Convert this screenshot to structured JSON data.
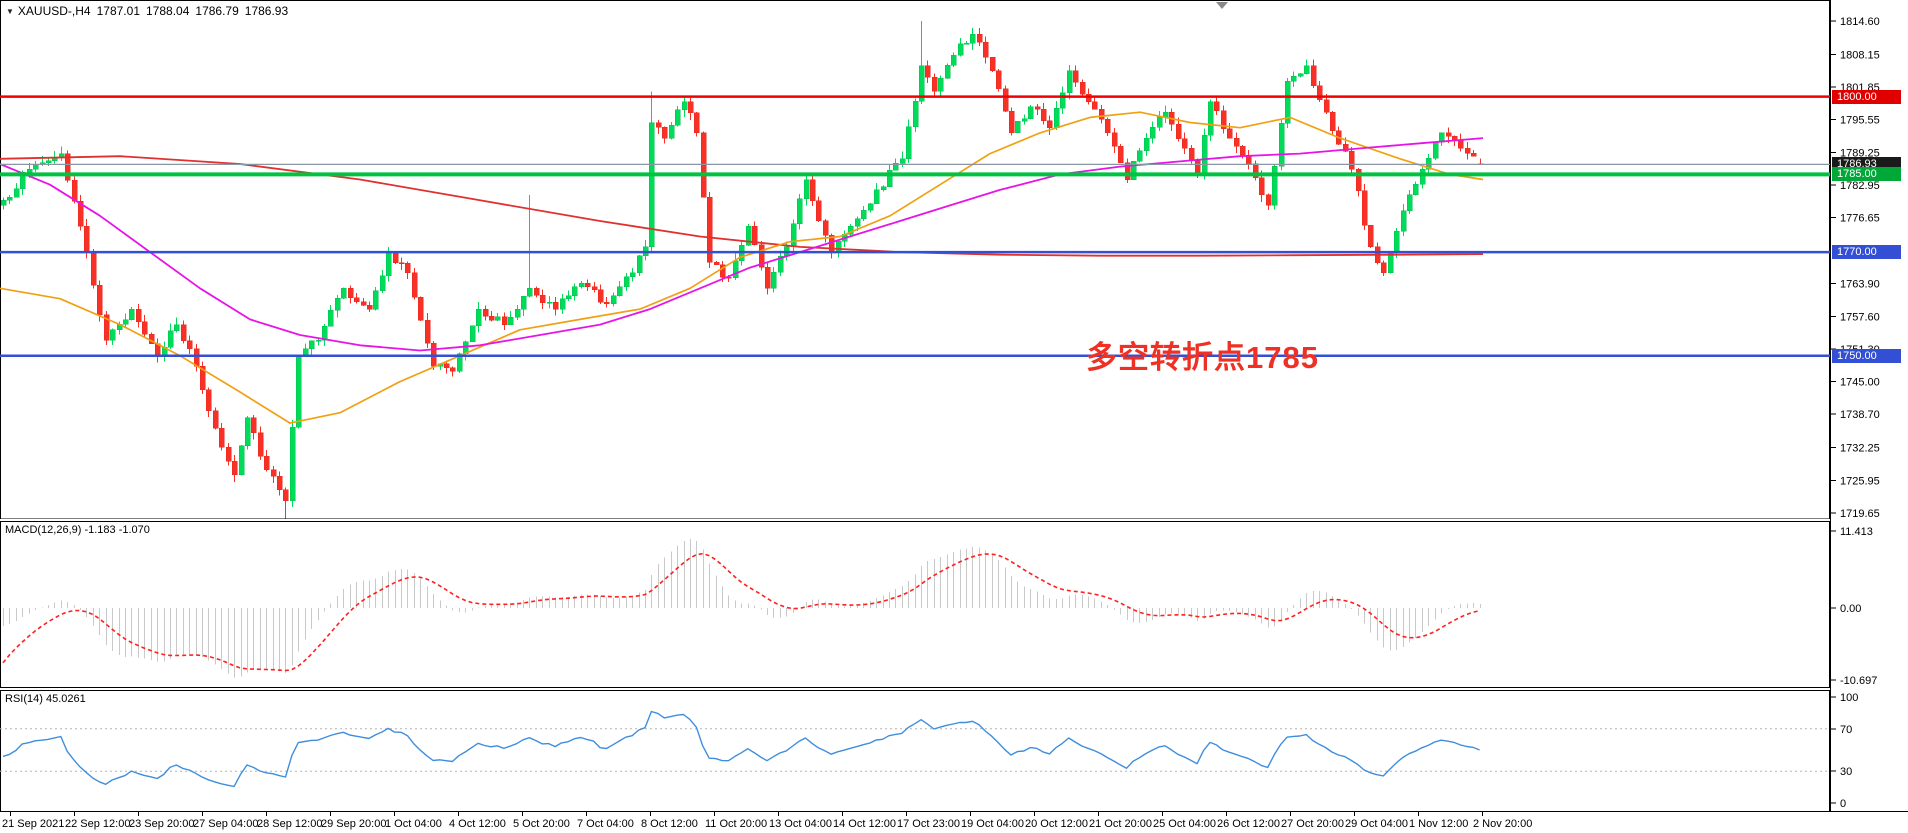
{
  "header": {
    "symbol_label": "XAUUSD-,H4",
    "open": "1787.01",
    "high": "1788.04",
    "low": "1786.79",
    "close": "1786.93"
  },
  "annotation": {
    "text": "多空转折点1785",
    "color": "#EE3124"
  },
  "panels": {
    "macd": {
      "label": "MACD(12,26,9) -1.183 -1.070",
      "axis": [
        "11.413",
        "0.00",
        "-10.697"
      ]
    },
    "rsi": {
      "label": "RSI(14) 45.0261",
      "axis": [
        "100",
        "70",
        "30",
        "0"
      ],
      "levels": [
        70,
        30
      ]
    }
  },
  "price_axis": {
    "labels": [
      "1814.60",
      "1808.15",
      "1801.85",
      "1795.55",
      "1789.25",
      "1782.95",
      "1776.65",
      "1763.90",
      "1757.60",
      "1751.30",
      "1745.00",
      "1738.70",
      "1732.25",
      "1725.95",
      "1719.65"
    ],
    "badges": [
      {
        "name": "price-badge-1800",
        "text": "1800.00",
        "price": 1800.0,
        "color": "#E00000"
      },
      {
        "name": "price-badge-current",
        "text": "1786.93",
        "price": 1786.93,
        "color": "#1A1A1A"
      },
      {
        "name": "price-badge-1785",
        "text": "1785.00",
        "price": 1785.0,
        "color": "#00A838"
      },
      {
        "name": "price-badge-1770",
        "text": "1770.00",
        "price": 1770.0,
        "color": "#3350D4"
      },
      {
        "name": "price-badge-1750",
        "text": "1750.00",
        "price": 1750.0,
        "color": "#3350D4"
      }
    ]
  },
  "time_axis": {
    "labels": [
      "21 Sep 2021",
      "22 Sep 12:00",
      "23 Sep 20:00",
      "27 Sep 04:00",
      "28 Sep 12:00",
      "29 Sep 20:00",
      "1 Oct 04:00",
      "4 Oct 12:00",
      "5 Oct 20:00",
      "7 Oct 04:00",
      "8 Oct 12:00",
      "11 Oct 20:00",
      "13 Oct 04:00",
      "14 Oct 12:00",
      "17 Oct 23:00",
      "19 Oct 04:00",
      "20 Oct 12:00",
      "21 Oct 20:00",
      "25 Oct 04:00",
      "26 Oct 12:00",
      "27 Oct 20:00",
      "29 Oct 04:00",
      "1 Nov 12:00",
      "2 Nov 20:00"
    ]
  },
  "chart_data": {
    "type": "candlestick",
    "instrument": "XAUUSD",
    "timeframe": "H4",
    "title": "XAUUSD-,H4",
    "candle_count": 231,
    "visible_range": {
      "price_min": 1718.9,
      "price_max": 1818.6,
      "time_start": "21 Sep 2021",
      "time_end": "2 Nov 20:00"
    },
    "last_candle": {
      "open": 1787.01,
      "high": 1788.04,
      "low": 1786.79,
      "close": 1786.93
    },
    "swing_points": [
      [
        0,
        1780
      ],
      [
        4,
        1786
      ],
      [
        9,
        1789
      ],
      [
        12,
        1775
      ],
      [
        16,
        1753
      ],
      [
        20,
        1759
      ],
      [
        24,
        1750
      ],
      [
        27,
        1756
      ],
      [
        30,
        1748
      ],
      [
        33,
        1736
      ],
      [
        36,
        1727
      ],
      [
        38,
        1738
      ],
      [
        41,
        1728
      ],
      [
        44,
        1722
      ],
      [
        46,
        1750
      ],
      [
        49,
        1753
      ],
      [
        53,
        1763
      ],
      [
        57,
        1759
      ],
      [
        60,
        1770
      ],
      [
        63,
        1766
      ],
      [
        67,
        1748
      ],
      [
        70,
        1747
      ],
      [
        74,
        1759
      ],
      [
        78,
        1756
      ],
      [
        82,
        1763
      ],
      [
        86,
        1759
      ],
      [
        90,
        1764
      ],
      [
        94,
        1760
      ],
      [
        98,
        1766
      ],
      [
        100,
        1771
      ],
      [
        101,
        1795
      ],
      [
        103,
        1792
      ],
      [
        106,
        1799
      ],
      [
        108,
        1793
      ],
      [
        110,
        1768
      ],
      [
        113,
        1765
      ],
      [
        116,
        1775
      ],
      [
        119,
        1763
      ],
      [
        122,
        1771
      ],
      [
        125,
        1784
      ],
      [
        127,
        1776
      ],
      [
        129,
        1770
      ],
      [
        132,
        1775
      ],
      [
        136,
        1782
      ],
      [
        140,
        1788
      ],
      [
        143,
        1806
      ],
      [
        145,
        1801
      ],
      [
        148,
        1808
      ],
      [
        151,
        1812
      ],
      [
        154,
        1805
      ],
      [
        157,
        1793
      ],
      [
        160,
        1798
      ],
      [
        163,
        1794
      ],
      [
        166,
        1805
      ],
      [
        169,
        1799
      ],
      [
        172,
        1793
      ],
      [
        175,
        1784
      ],
      [
        178,
        1792
      ],
      [
        181,
        1797
      ],
      [
        184,
        1790
      ],
      [
        186,
        1785
      ],
      [
        188,
        1799
      ],
      [
        191,
        1792
      ],
      [
        194,
        1787
      ],
      [
        197,
        1779
      ],
      [
        200,
        1803
      ],
      [
        203,
        1806
      ],
      [
        206,
        1797
      ],
      [
        210,
        1786
      ],
      [
        213,
        1771
      ],
      [
        215,
        1766
      ],
      [
        218,
        1778
      ],
      [
        221,
        1786
      ],
      [
        224,
        1793
      ],
      [
        227,
        1790
      ],
      [
        230,
        1786.93
      ]
    ],
    "spikes": [
      {
        "index": 44,
        "side": "low",
        "price": 1718.6
      },
      {
        "index": 82,
        "side": "high",
        "price": 1781.0
      },
      {
        "index": 101,
        "side": "high",
        "price": 1801.0
      },
      {
        "index": 143,
        "side": "high",
        "price": 1814.6
      },
      {
        "index": 151,
        "side": "high",
        "price": 1813.2
      }
    ],
    "horizontal_lines": [
      {
        "name": "resistance-1800",
        "price": 1800.0,
        "color": "#F00000",
        "width": 2.5
      },
      {
        "name": "pivot-1785",
        "price": 1785.0,
        "color": "#00C342",
        "width": 4
      },
      {
        "name": "support-1770",
        "price": 1770.0,
        "color": "#3350D4",
        "width": 2.5
      },
      {
        "name": "support-1750",
        "price": 1750.0,
        "color": "#3350D4",
        "width": 2.5
      },
      {
        "name": "current-price",
        "price": 1786.93,
        "color": "#8A96A3",
        "width": 1.2
      }
    ],
    "moving_averages": {
      "orange_ma": [
        [
          0,
          1763
        ],
        [
          60,
          1761
        ],
        [
          120,
          1756
        ],
        [
          180,
          1750
        ],
        [
          240,
          1743
        ],
        [
          290,
          1737
        ],
        [
          340,
          1739
        ],
        [
          400,
          1745
        ],
        [
          460,
          1750
        ],
        [
          520,
          1755
        ],
        [
          580,
          1757
        ],
        [
          640,
          1759
        ],
        [
          690,
          1763
        ],
        [
          740,
          1769
        ],
        [
          790,
          1772
        ],
        [
          840,
          1773
        ],
        [
          890,
          1777
        ],
        [
          940,
          1783
        ],
        [
          990,
          1789
        ],
        [
          1040,
          1793
        ],
        [
          1090,
          1796
        ],
        [
          1140,
          1797
        ],
        [
          1190,
          1795
        ],
        [
          1240,
          1794
        ],
        [
          1290,
          1796
        ],
        [
          1340,
          1792
        ],
        [
          1400,
          1788
        ],
        [
          1450,
          1785
        ],
        [
          1483,
          1784
        ]
      ],
      "magenta_ma": [
        [
          0,
          1787
        ],
        [
          50,
          1783
        ],
        [
          100,
          1777
        ],
        [
          150,
          1770
        ],
        [
          200,
          1763
        ],
        [
          250,
          1757
        ],
        [
          300,
          1754
        ],
        [
          360,
          1752
        ],
        [
          420,
          1751
        ],
        [
          480,
          1752
        ],
        [
          540,
          1754
        ],
        [
          600,
          1756
        ],
        [
          650,
          1759
        ],
        [
          700,
          1763
        ],
        [
          750,
          1767
        ],
        [
          800,
          1770
        ],
        [
          850,
          1773
        ],
        [
          900,
          1776
        ],
        [
          950,
          1779
        ],
        [
          1000,
          1782
        ],
        [
          1060,
          1785
        ],
        [
          1120,
          1786.5
        ],
        [
          1180,
          1787.5
        ],
        [
          1240,
          1788.5
        ],
        [
          1300,
          1789
        ],
        [
          1360,
          1790
        ],
        [
          1420,
          1791
        ],
        [
          1483,
          1792
        ]
      ],
      "red_ma": [
        [
          0,
          1788
        ],
        [
          120,
          1788.5
        ],
        [
          240,
          1787
        ],
        [
          360,
          1784
        ],
        [
          480,
          1780
        ],
        [
          600,
          1776
        ],
        [
          700,
          1773
        ],
        [
          800,
          1771
        ],
        [
          900,
          1770
        ],
        [
          1000,
          1769.5
        ],
        [
          1100,
          1769.3
        ],
        [
          1200,
          1769.3
        ],
        [
          1300,
          1769.4
        ],
        [
          1400,
          1769.5
        ],
        [
          1483,
          1769.6
        ]
      ]
    },
    "indicators": {
      "macd": {
        "params": "12,26,9",
        "current_hist": -1.183,
        "current_signal": -1.07,
        "axis_max": 11.413,
        "axis_min": -10.697
      },
      "rsi": {
        "period": 14,
        "current": 45.0261,
        "levels": [
          70,
          30
        ]
      }
    }
  },
  "colors": {
    "up_candle": "#00DC5A",
    "up_stroke": "#00C050",
    "down_candle": "#F93025",
    "down_stroke": "#E52A20",
    "macd_hist": "#C9C9C9",
    "macd_signal": "#FF2020",
    "rsi_line": "#3E8EDE",
    "level_dash": "#B3B3B3",
    "ma_orange": "#F0A011",
    "ma_magenta": "#E714E7",
    "ma_red": "#E03030",
    "axis_text": "#000000",
    "border": "#000000"
  }
}
